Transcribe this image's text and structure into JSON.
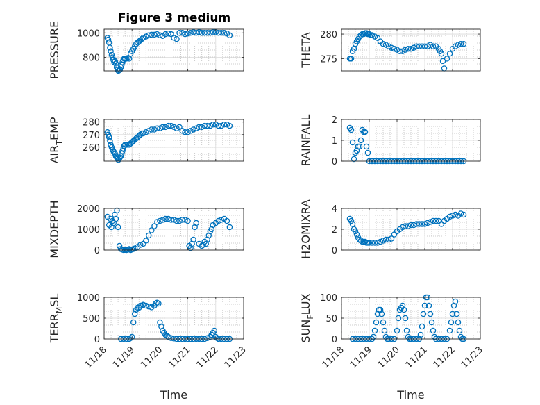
{
  "title": "Figure 3 medium",
  "marker_color": "#0072bd",
  "chart_data": [
    {
      "type": "scatter",
      "ylabel": "PRESSURE",
      "yticks": [
        "1000",
        "800"
      ],
      "ytick_values": [
        1000,
        800
      ],
      "ylim": [
        690,
        1030
      ],
      "grid": true,
      "x": [
        0.12,
        0.15,
        0.18,
        0.21,
        0.24,
        0.27,
        0.3,
        0.33,
        0.36,
        0.39,
        0.42,
        0.45,
        0.48,
        0.51,
        0.54,
        0.57,
        0.6,
        0.63,
        0.66,
        0.69,
        0.72,
        0.75,
        0.8,
        0.85,
        0.9,
        0.95,
        1.0,
        1.05,
        1.1,
        1.15,
        1.2,
        1.25,
        1.3,
        1.35,
        1.4,
        1.5,
        1.6,
        1.7,
        1.8,
        1.9,
        2.0,
        2.1,
        2.2,
        2.3,
        2.4,
        2.5,
        2.6,
        2.7,
        2.8,
        2.9,
        3.0,
        3.1,
        3.2,
        3.3,
        3.4,
        3.5,
        3.6,
        3.7,
        3.8,
        3.9,
        4.0,
        4.1,
        4.2,
        4.3,
        4.4,
        4.5
      ],
      "y": [
        960,
        945,
        920,
        880,
        850,
        820,
        800,
        780,
        760,
        770,
        750,
        720,
        700,
        690,
        695,
        700,
        720,
        740,
        760,
        780,
        790,
        790,
        790,
        795,
        790,
        830,
        850,
        870,
        890,
        910,
        920,
        930,
        940,
        950,
        960,
        970,
        980,
        985,
        985,
        990,
        980,
        975,
        990,
        995,
        990,
        960,
        950,
        1000,
        1000,
        990,
        995,
        1000,
        1005,
        1000,
        1005,
        1000,
        1000,
        1000,
        1000,
        1005,
        1005,
        1000,
        1000,
        1000,
        995,
        980
      ]
    },
    {
      "type": "scatter",
      "ylabel": "THETA",
      "yticks": [
        "280",
        "275"
      ],
      "ytick_values": [
        280,
        275
      ],
      "ylim": [
        272.5,
        281
      ],
      "grid": true,
      "x": [
        0.3,
        0.35,
        0.4,
        0.45,
        0.5,
        0.55,
        0.6,
        0.65,
        0.7,
        0.75,
        0.8,
        0.85,
        0.9,
        0.95,
        1.0,
        1.05,
        1.1,
        1.2,
        1.3,
        1.4,
        1.5,
        1.6,
        1.7,
        1.8,
        1.9,
        2.0,
        2.1,
        2.2,
        2.3,
        2.4,
        2.5,
        2.6,
        2.7,
        2.8,
        2.9,
        3.0,
        3.1,
        3.2,
        3.3,
        3.4,
        3.5,
        3.55,
        3.6,
        3.65,
        3.7,
        3.8,
        3.9,
        4.0,
        4.1,
        4.2,
        4.3,
        4.4
      ],
      "y": [
        275,
        275,
        276.5,
        277,
        278,
        278.5,
        279,
        279.5,
        279.8,
        280,
        280,
        280.2,
        280.2,
        280,
        280,
        279.8,
        279.8,
        279.5,
        279.2,
        278.5,
        278,
        277.8,
        277.5,
        277.2,
        277,
        276.8,
        276.5,
        276.5,
        276.8,
        277,
        277,
        277.2,
        277.5,
        277.5,
        277.5,
        277.5,
        277.5,
        277.8,
        277.5,
        277.5,
        277,
        276.5,
        276,
        274.5,
        273,
        275,
        276,
        277,
        277.5,
        277.8,
        278,
        278
      ]
    },
    {
      "type": "scatter",
      "ylabel": "AIR_TEMP",
      "ylabel_main": "AIR",
      "ylabel_sub": "T",
      "ylabel_tail": "EMP",
      "yticks": [
        "280",
        "270",
        "260"
      ],
      "ytick_values": [
        280,
        270,
        260
      ],
      "ylim": [
        249,
        282
      ],
      "grid": true,
      "x": [
        0.12,
        0.15,
        0.18,
        0.21,
        0.24,
        0.27,
        0.3,
        0.33,
        0.36,
        0.39,
        0.42,
        0.45,
        0.48,
        0.51,
        0.54,
        0.57,
        0.6,
        0.63,
        0.66,
        0.69,
        0.72,
        0.75,
        0.8,
        0.85,
        0.9,
        0.95,
        1.0,
        1.05,
        1.1,
        1.15,
        1.2,
        1.25,
        1.3,
        1.35,
        1.4,
        1.5,
        1.6,
        1.7,
        1.8,
        1.9,
        2.0,
        2.1,
        2.2,
        2.3,
        2.4,
        2.5,
        2.6,
        2.7,
        2.8,
        2.9,
        3.0,
        3.1,
        3.2,
        3.3,
        3.4,
        3.5,
        3.6,
        3.7,
        3.8,
        3.9,
        4.0,
        4.1,
        4.2,
        4.3,
        4.4,
        4.5
      ],
      "y": [
        272,
        270,
        268,
        265,
        262,
        260,
        258,
        257,
        256,
        255,
        253,
        252,
        251,
        250,
        251,
        252,
        253,
        255,
        257,
        259,
        261,
        262,
        262,
        262,
        262,
        263,
        264,
        265,
        266,
        267,
        268,
        269,
        270,
        271,
        271,
        272,
        273,
        274,
        274,
        275,
        275,
        276,
        276,
        277,
        277,
        276,
        275,
        276,
        273,
        272,
        272,
        273,
        274,
        275,
        276,
        276,
        277,
        277,
        277,
        278,
        278,
        277,
        277,
        278,
        278,
        277
      ]
    },
    {
      "type": "scatter",
      "ylabel": "RAINFALL",
      "yticks": [
        "2",
        "1",
        "0"
      ],
      "ytick_values": [
        2,
        1,
        0
      ],
      "ylim": [
        0,
        2
      ],
      "grid": true,
      "x": [
        0.3,
        0.35,
        0.4,
        0.45,
        0.5,
        0.55,
        0.6,
        0.65,
        0.7,
        0.75,
        0.8,
        0.85,
        0.9,
        0.95,
        1.0,
        1.1,
        1.2,
        1.3,
        1.4,
        1.5,
        1.6,
        1.7,
        1.8,
        1.9,
        2.0,
        2.1,
        2.2,
        2.3,
        2.4,
        2.5,
        2.6,
        2.7,
        2.8,
        2.9,
        3.0,
        3.1,
        3.2,
        3.3,
        3.4,
        3.5,
        3.6,
        3.7,
        3.8,
        3.9,
        4.0,
        4.1,
        4.2,
        4.3,
        4.4
      ],
      "y": [
        1.6,
        1.5,
        0.9,
        0.1,
        0.4,
        0.5,
        0.7,
        0.7,
        1.0,
        1.5,
        1.4,
        1.4,
        0.7,
        0.4,
        0,
        0,
        0,
        0,
        0,
        0,
        0,
        0,
        0,
        0,
        0,
        0,
        0,
        0,
        0,
        0,
        0,
        0,
        0,
        0,
        0,
        0,
        0,
        0,
        0,
        0,
        0,
        0,
        0,
        0,
        0,
        0,
        0,
        0,
        0
      ]
    },
    {
      "type": "scatter",
      "ylabel": "MIXDEPTH",
      "yticks": [
        "2000",
        "1000",
        "0"
      ],
      "ytick_values": [
        2000,
        1000,
        0
      ],
      "ylim": [
        0,
        2000
      ],
      "grid": true,
      "x": [
        0.12,
        0.18,
        0.22,
        0.26,
        0.3,
        0.34,
        0.38,
        0.42,
        0.46,
        0.5,
        0.55,
        0.6,
        0.65,
        0.7,
        0.75,
        0.8,
        0.85,
        0.9,
        0.95,
        1.0,
        1.05,
        1.1,
        1.2,
        1.3,
        1.4,
        1.5,
        1.6,
        1.7,
        1.8,
        1.9,
        2.0,
        2.1,
        2.2,
        2.3,
        2.4,
        2.5,
        2.6,
        2.7,
        2.8,
        2.9,
        3.0,
        3.05,
        3.1,
        3.15,
        3.2,
        3.25,
        3.3,
        3.4,
        3.5,
        3.55,
        3.6,
        3.65,
        3.7,
        3.75,
        3.8,
        3.85,
        3.9,
        4.0,
        4.1,
        4.2,
        4.3,
        4.4,
        4.5
      ],
      "y": [
        1600,
        1200,
        1500,
        1100,
        1400,
        1300,
        1700,
        1500,
        1900,
        1100,
        200,
        50,
        20,
        0,
        10,
        0,
        20,
        50,
        0,
        30,
        50,
        80,
        150,
        250,
        300,
        450,
        700,
        950,
        1150,
        1350,
        1400,
        1450,
        1500,
        1500,
        1450,
        1450,
        1400,
        1400,
        1450,
        1450,
        1400,
        200,
        100,
        300,
        500,
        1100,
        1300,
        300,
        200,
        250,
        400,
        300,
        500,
        700,
        900,
        1000,
        1200,
        1300,
        1400,
        1450,
        1500,
        1400,
        1100
      ]
    },
    {
      "type": "scatter",
      "ylabel": "H2OMIXRA",
      "yticks": [
        "4",
        "2",
        "0"
      ],
      "ytick_values": [
        4,
        2,
        0
      ],
      "ylim": [
        0,
        4
      ],
      "grid": true,
      "x": [
        0.3,
        0.35,
        0.4,
        0.45,
        0.5,
        0.55,
        0.6,
        0.65,
        0.7,
        0.75,
        0.8,
        0.85,
        0.9,
        0.95,
        1.0,
        1.1,
        1.2,
        1.3,
        1.4,
        1.5,
        1.6,
        1.7,
        1.8,
        1.9,
        2.0,
        2.1,
        2.2,
        2.3,
        2.4,
        2.5,
        2.6,
        2.7,
        2.8,
        2.9,
        3.0,
        3.1,
        3.2,
        3.3,
        3.4,
        3.5,
        3.6,
        3.7,
        3.8,
        3.9,
        4.0,
        4.1,
        4.2,
        4.3,
        4.4
      ],
      "y": [
        3.0,
        2.8,
        2.5,
        2.0,
        1.8,
        1.5,
        1.2,
        1.0,
        0.9,
        0.8,
        0.8,
        0.8,
        0.7,
        0.7,
        0.7,
        0.7,
        0.7,
        0.7,
        0.8,
        0.9,
        1.0,
        1.0,
        1.1,
        1.5,
        1.8,
        2.0,
        2.2,
        2.3,
        2.3,
        2.4,
        2.4,
        2.5,
        2.5,
        2.5,
        2.5,
        2.6,
        2.7,
        2.8,
        2.8,
        2.8,
        2.5,
        2.8,
        3.0,
        3.2,
        3.3,
        3.4,
        3.3,
        3.5,
        3.4
      ]
    },
    {
      "type": "scatter",
      "ylabel": "TERR_MSL",
      "ylabel_main": "TERR",
      "ylabel_sub": "M",
      "ylabel_tail": "SL",
      "yticks": [
        "1000",
        "500",
        "0"
      ],
      "ytick_values": [
        1000,
        500,
        0
      ],
      "ylim": [
        0,
        1000
      ],
      "grid": true,
      "xticks": [
        "11/18",
        "11/19",
        "11/20",
        "11/21",
        "11/22",
        "11/23"
      ],
      "xtick_values": [
        0,
        1,
        2,
        3,
        4,
        5
      ],
      "xlim": [
        0,
        5
      ],
      "xlabel": "Time",
      "x": [
        0.6,
        0.7,
        0.8,
        0.9,
        0.95,
        1.0,
        1.05,
        1.1,
        1.15,
        1.2,
        1.25,
        1.3,
        1.35,
        1.4,
        1.5,
        1.6,
        1.7,
        1.8,
        1.85,
        1.9,
        1.95,
        2.0,
        2.05,
        2.1,
        2.15,
        2.2,
        2.25,
        2.3,
        2.4,
        2.5,
        2.6,
        2.7,
        2.8,
        2.9,
        3.0,
        3.1,
        3.2,
        3.3,
        3.4,
        3.5,
        3.6,
        3.7,
        3.8,
        3.85,
        3.9,
        3.95,
        4.0,
        4.05,
        4.1,
        4.2,
        4.3,
        4.4,
        4.5
      ],
      "y": [
        0,
        0,
        0,
        0,
        20,
        50,
        400,
        600,
        700,
        750,
        750,
        800,
        800,
        820,
        800,
        780,
        760,
        800,
        850,
        870,
        850,
        400,
        300,
        200,
        150,
        100,
        80,
        50,
        20,
        10,
        0,
        0,
        0,
        0,
        0,
        0,
        0,
        0,
        0,
        0,
        0,
        20,
        50,
        100,
        150,
        200,
        50,
        20,
        0,
        0,
        0,
        0,
        0
      ]
    },
    {
      "type": "scatter",
      "ylabel": "SUN_FLUX",
      "ylabel_main": "SUN",
      "ylabel_sub": "F",
      "ylabel_tail": "LUX",
      "yticks": [
        "100",
        "50",
        "0"
      ],
      "ytick_values": [
        100,
        50,
        0
      ],
      "ylim": [
        0,
        100
      ],
      "grid": true,
      "xticks": [
        "11/18",
        "11/19",
        "11/20",
        "11/21",
        "11/22",
        "11/23"
      ],
      "xtick_values": [
        0,
        1,
        2,
        3,
        4,
        5
      ],
      "xlim": [
        0,
        5
      ],
      "xlabel": "Time",
      "x": [
        0.4,
        0.5,
        0.6,
        0.7,
        0.8,
        0.9,
        1.0,
        1.1,
        1.15,
        1.2,
        1.25,
        1.3,
        1.35,
        1.4,
        1.45,
        1.5,
        1.55,
        1.6,
        1.65,
        1.7,
        1.8,
        1.9,
        2.0,
        2.05,
        2.1,
        2.15,
        2.2,
        2.25,
        2.3,
        2.35,
        2.4,
        2.45,
        2.5,
        2.6,
        2.7,
        2.8,
        2.85,
        2.9,
        2.95,
        3.0,
        3.05,
        3.1,
        3.15,
        3.2,
        3.25,
        3.3,
        3.35,
        3.4,
        3.5,
        3.6,
        3.7,
        3.8,
        3.9,
        3.95,
        4.0,
        4.05,
        4.1,
        4.15,
        4.2,
        4.25,
        4.3,
        4.35,
        4.4
      ],
      "y": [
        0,
        0,
        0,
        0,
        0,
        0,
        0,
        0,
        5,
        20,
        40,
        60,
        70,
        70,
        60,
        40,
        20,
        5,
        0,
        0,
        0,
        0,
        20,
        50,
        70,
        75,
        80,
        70,
        50,
        20,
        5,
        0,
        0,
        0,
        0,
        0,
        10,
        30,
        60,
        80,
        100,
        100,
        80,
        60,
        40,
        20,
        5,
        0,
        0,
        0,
        0,
        0,
        20,
        40,
        60,
        80,
        90,
        60,
        40,
        20,
        5,
        0,
        0
      ]
    }
  ]
}
